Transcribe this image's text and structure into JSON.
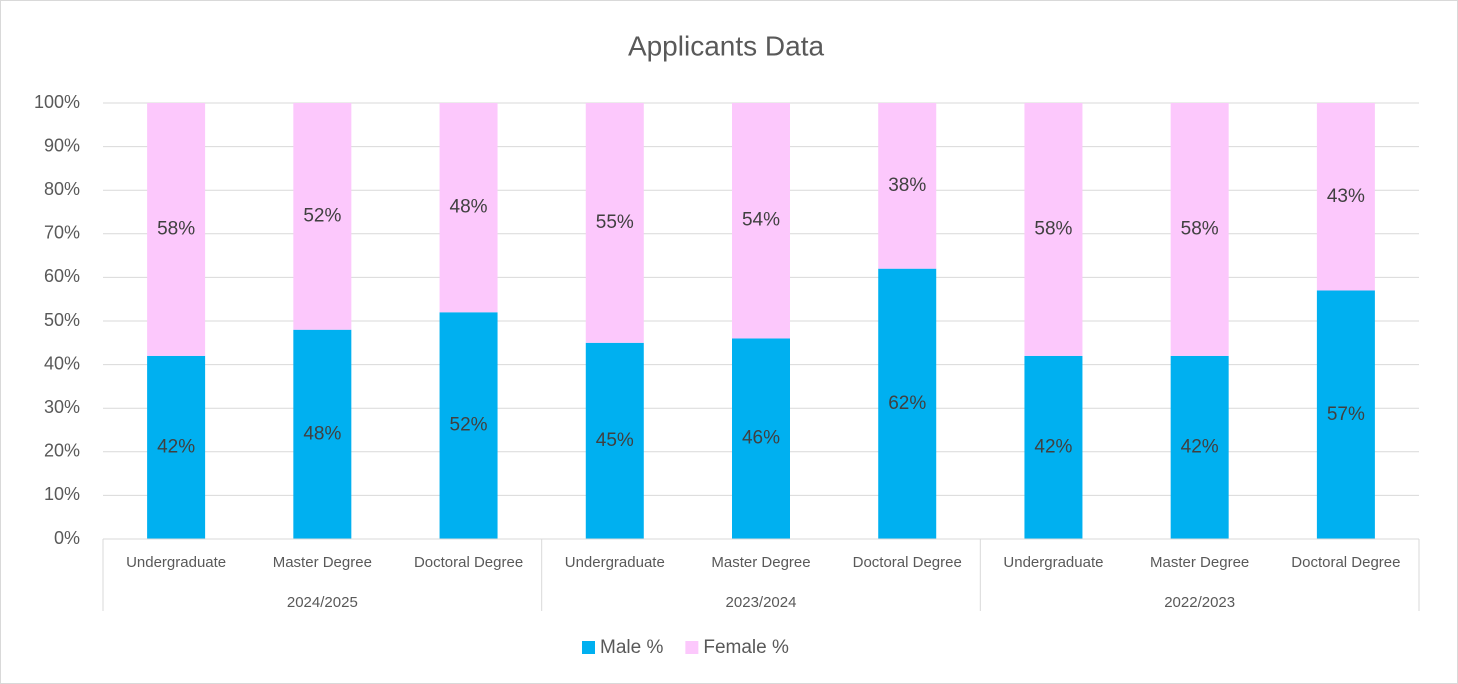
{
  "chart_data": {
    "type": "stacked_bar_100",
    "title": "Applicants Data",
    "categories": [
      "Undergraduate",
      "Master Degree",
      "Doctoral Degree",
      "Undergraduate",
      "Master Degree",
      "Doctoral Degree",
      "Undergraduate",
      "Master Degree",
      "Doctoral Degree"
    ],
    "groups": [
      "2024/2025",
      "2023/2024",
      "2022/2023"
    ],
    "series": [
      {
        "name": "Male %",
        "color": "#00b0f0",
        "values": [
          42,
          48,
          52,
          45,
          46,
          62,
          42,
          42,
          57
        ],
        "value_labels": [
          "42%",
          "48%",
          "52%",
          "45%",
          "46%",
          "62%",
          "42%",
          "42%",
          "57%"
        ]
      },
      {
        "name": "Female %",
        "color": "#fcc8fc",
        "values": [
          58,
          52,
          48,
          55,
          54,
          38,
          58,
          58,
          43
        ],
        "value_labels": [
          "58%",
          "52%",
          "48%",
          "55%",
          "54%",
          "38%",
          "58%",
          "58%",
          "43%"
        ]
      }
    ],
    "ylim": [
      0,
      100
    ],
    "yticks": [
      {
        "value": 0,
        "label": "0%"
      },
      {
        "value": 10,
        "label": "10%"
      },
      {
        "value": 20,
        "label": "20%"
      },
      {
        "value": 30,
        "label": "30%"
      },
      {
        "value": 40,
        "label": "40%"
      },
      {
        "value": 50,
        "label": "50%"
      },
      {
        "value": 60,
        "label": "60%"
      },
      {
        "value": 70,
        "label": "70%"
      },
      {
        "value": 80,
        "label": "80%"
      },
      {
        "value": 90,
        "label": "90%"
      },
      {
        "value": 100,
        "label": "100%"
      }
    ],
    "grid": true,
    "legend": "bottom"
  }
}
